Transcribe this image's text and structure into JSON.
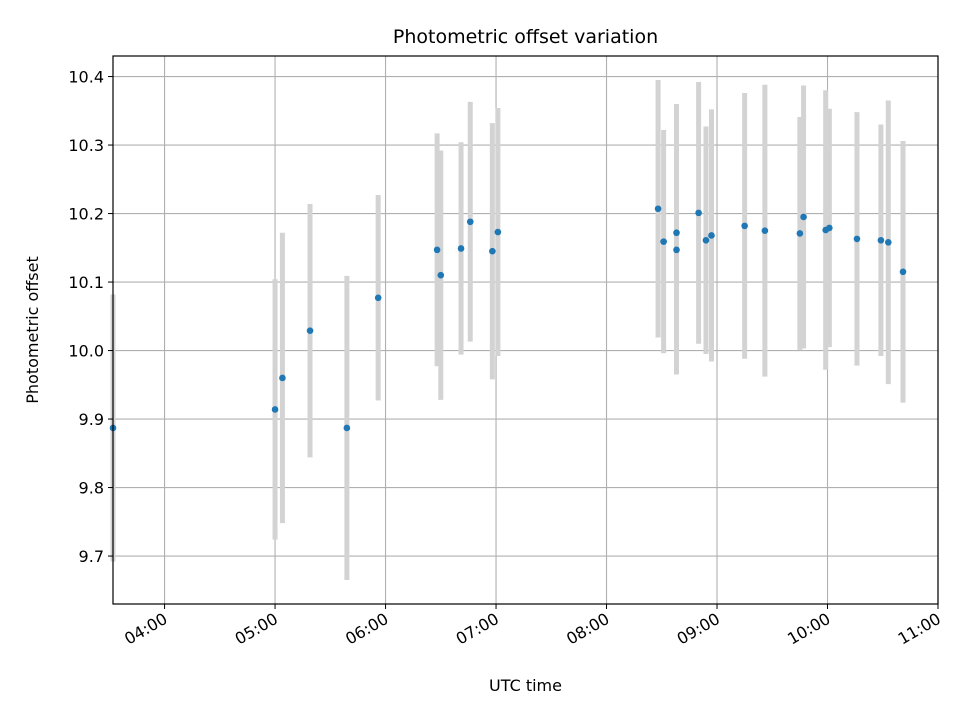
{
  "chart_data": {
    "type": "scatter",
    "title": "Photometric offset variation",
    "xlabel": "UTC time",
    "ylabel": "Photometric offset",
    "x_ticks": [
      "04:00",
      "05:00",
      "06:00",
      "07:00",
      "08:00",
      "09:00",
      "10:00",
      "11:00"
    ],
    "y_ticks": [
      "9.7",
      "9.8",
      "9.9",
      "10.0",
      "10.1",
      "10.2",
      "10.3",
      "10.4"
    ],
    "xlim": [
      "03:32",
      "11:00"
    ],
    "ylim": [
      9.63,
      10.43
    ],
    "grid": true,
    "colors": {
      "marker": "#1f77b4",
      "errorbar": "#d3d3d3",
      "grid": "#b0b0b0"
    },
    "points": [
      {
        "t": "03:32",
        "y": 9.887,
        "err": 0.195
      },
      {
        "t": "05:00",
        "y": 9.914,
        "err": 0.19
      },
      {
        "t": "05:04",
        "y": 9.96,
        "err": 0.212
      },
      {
        "t": "05:19",
        "y": 10.029,
        "err": 0.185
      },
      {
        "t": "05:39",
        "y": 9.887,
        "err": 0.222
      },
      {
        "t": "05:56",
        "y": 10.077,
        "err": 0.15
      },
      {
        "t": "06:28",
        "y": 10.147,
        "err": 0.17
      },
      {
        "t": "06:30",
        "y": 10.11,
        "err": 0.182
      },
      {
        "t": "06:41",
        "y": 10.149,
        "err": 0.155
      },
      {
        "t": "06:46",
        "y": 10.188,
        "err": 0.175
      },
      {
        "t": "06:58",
        "y": 10.145,
        "err": 0.187
      },
      {
        "t": "07:01",
        "y": 10.173,
        "err": 0.181
      },
      {
        "t": "08:28",
        "y": 10.207,
        "err": 0.188
      },
      {
        "t": "08:31",
        "y": 10.159,
        "err": 0.163
      },
      {
        "t": "08:38",
        "y": 10.172,
        "err": 0.188
      },
      {
        "t": "08:38",
        "y": 10.147,
        "err": 0.182
      },
      {
        "t": "08:50",
        "y": 10.201,
        "err": 0.191
      },
      {
        "t": "08:54",
        "y": 10.161,
        "err": 0.166
      },
      {
        "t": "08:57",
        "y": 10.168,
        "err": 0.184
      },
      {
        "t": "09:15",
        "y": 10.182,
        "err": 0.194
      },
      {
        "t": "09:26",
        "y": 10.175,
        "err": 0.213
      },
      {
        "t": "09:45",
        "y": 10.171,
        "err": 0.17
      },
      {
        "t": "09:47",
        "y": 10.195,
        "err": 0.192
      },
      {
        "t": "09:59",
        "y": 10.176,
        "err": 0.204
      },
      {
        "t": "10:01",
        "y": 10.179,
        "err": 0.174
      },
      {
        "t": "10:16",
        "y": 10.163,
        "err": 0.185
      },
      {
        "t": "10:29",
        "y": 10.161,
        "err": 0.169
      },
      {
        "t": "10:33",
        "y": 10.158,
        "err": 0.207
      },
      {
        "t": "10:41",
        "y": 10.115,
        "err": 0.191
      }
    ]
  }
}
